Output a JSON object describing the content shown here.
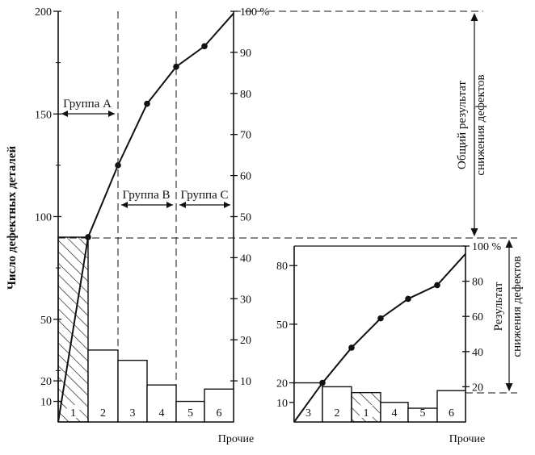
{
  "chart_data": [
    {
      "type": "bar",
      "left_axis": {
        "label": "Число дефектных деталей",
        "ylim": [
          0,
          200
        ],
        "ticks": [
          "10",
          "20",
          "50",
          "100",
          "150",
          "200"
        ],
        "tick_values": [
          10,
          20,
          50,
          100,
          150,
          200
        ]
      },
      "right_axis": {
        "ylim": [
          0,
          100
        ],
        "ticks": [
          "10",
          "20",
          "30",
          "40",
          "50",
          "60",
          "70",
          "80",
          "90",
          "100 %"
        ],
        "tick_values": [
          10,
          20,
          30,
          40,
          50,
          60,
          70,
          80,
          90,
          100
        ]
      },
      "categories": [
        "1",
        "2",
        "3",
        "4",
        "5",
        "6"
      ],
      "values": [
        90,
        35,
        30,
        18,
        10,
        16
      ],
      "cumulative_values": [
        90,
        125,
        155,
        173,
        183,
        199
      ],
      "hatched_category": "1",
      "x_label": "Прочие",
      "groups": [
        {
          "label": "Группа А",
          "categories": [
            "1",
            "2"
          ]
        },
        {
          "label": "Группа В",
          "categories": [
            "3",
            "4"
          ]
        },
        {
          "label": "Группа С",
          "categories": [
            "5",
            "6"
          ]
        }
      ]
    },
    {
      "type": "bar",
      "left_axis": {
        "ylim": [
          0,
          90
        ],
        "ticks": [
          "10",
          "20",
          "50",
          "80"
        ],
        "tick_values": [
          10,
          20,
          50,
          80
        ]
      },
      "right_axis": {
        "ylim": [
          0,
          100
        ],
        "ticks": [
          "20",
          "40",
          "60",
          "80",
          "100 %"
        ],
        "tick_values": [
          20,
          40,
          60,
          80,
          100
        ]
      },
      "categories": [
        "3",
        "2",
        "1",
        "4",
        "5",
        "6"
      ],
      "values": [
        20,
        18,
        15,
        10,
        7,
        16
      ],
      "cumulative_values": [
        20,
        38,
        53,
        63,
        70,
        86
      ],
      "hatched_category": "1",
      "x_label": "Прочие"
    }
  ],
  "annotations": {
    "total_result": [
      "Общий результат",
      "снижения дефектов"
    ],
    "result": [
      "Результат",
      "снижения дефектов"
    ]
  }
}
